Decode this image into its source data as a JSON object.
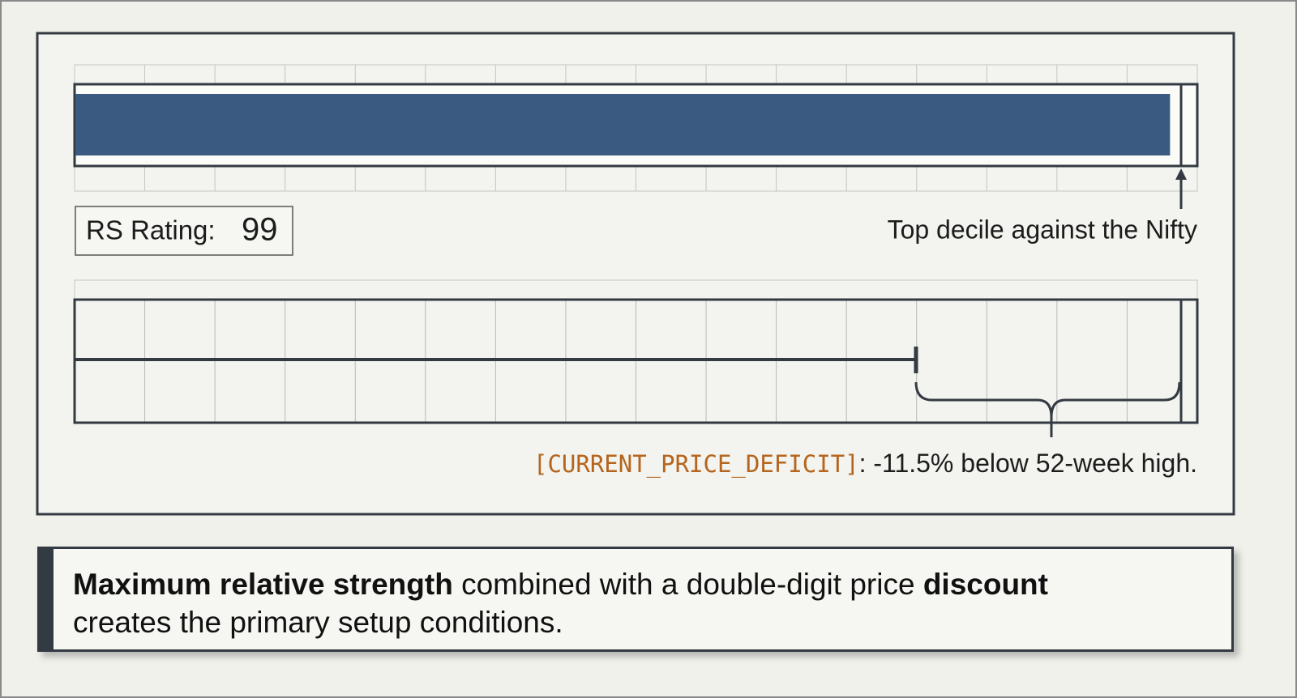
{
  "rs_panel": {
    "label": "RS Rating:",
    "value": 99,
    "xlim": [
      0,
      100
    ],
    "annotation": "Top decile against the Nifty"
  },
  "price_panel": {
    "tag": "[CURRENT_PRICE_DEFICIT]",
    "text": ": -11.5% below 52-week high."
  },
  "callout": {
    "lines": [
      [
        {
          "text": "Maximum relative strength",
          "bold": true
        },
        {
          "text": " combined with a double-digit price ",
          "bold": false
        },
        {
          "text": "discount",
          "bold": true
        }
      ],
      [
        {
          "text": "creates the primary setup conditions.",
          "bold": false
        }
      ]
    ]
  }
}
